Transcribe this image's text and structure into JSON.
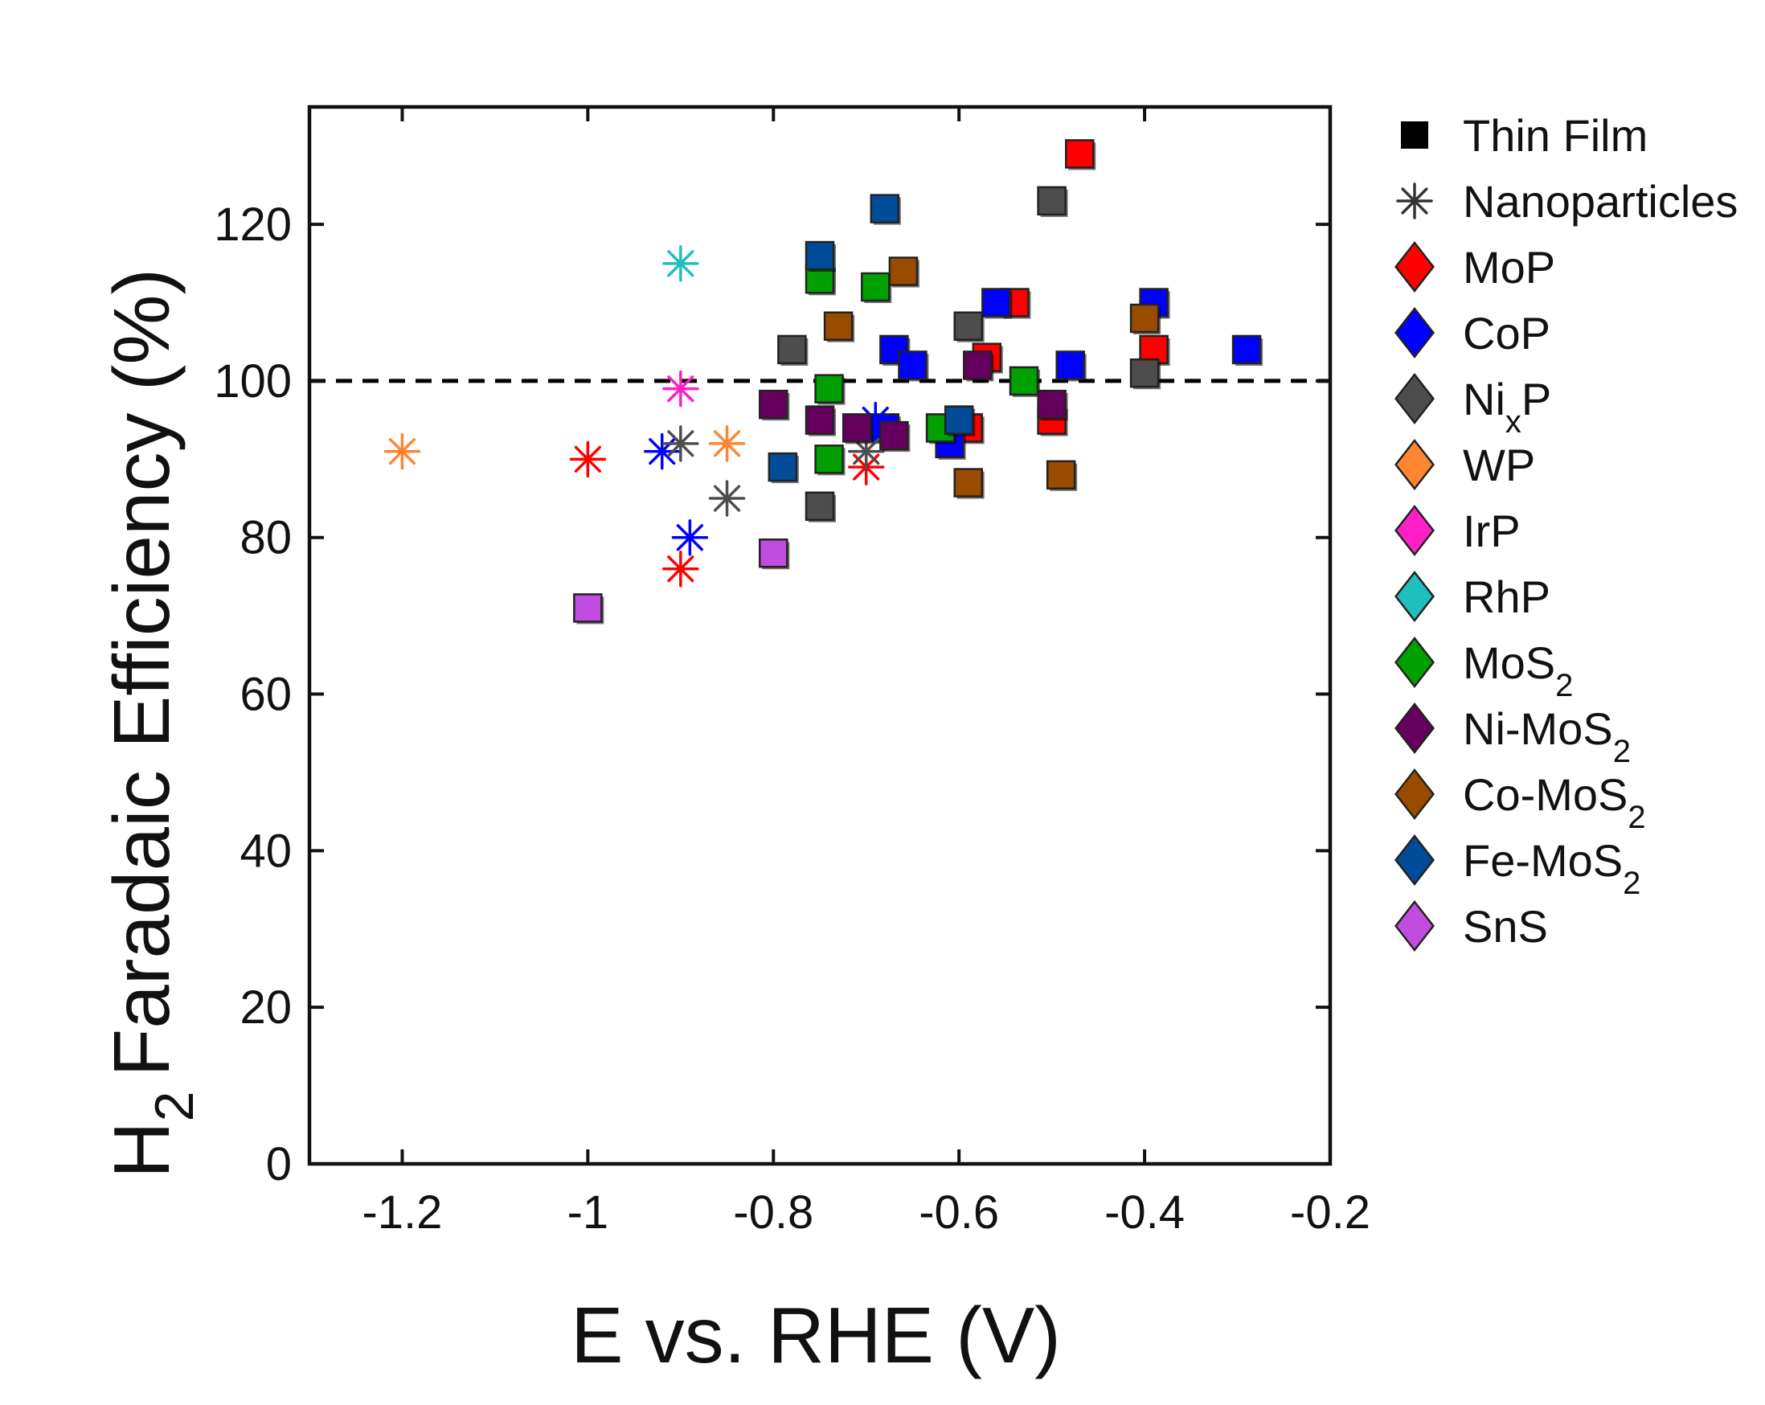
{
  "chart_data": {
    "type": "scatter",
    "xlabel": "E vs. RHE (V)",
    "ylabel": "H2 Faradaic Efficiency (%)",
    "ylabel_parts": {
      "main": "H",
      "sub": "2",
      "rest": "Faradaic Efficiency (%)"
    },
    "xlim": [
      -1.3,
      -0.2
    ],
    "ylim": [
      0,
      135
    ],
    "xticks": [
      -1.2,
      -1,
      -0.8,
      -0.6,
      -0.4,
      -0.2
    ],
    "xtick_labels": [
      "-1.2",
      "-1",
      "-0.8",
      "-0.6",
      "-0.4",
      "-0.2"
    ],
    "yticks": [
      0,
      20,
      40,
      60,
      80,
      100,
      120
    ],
    "ytick_labels": [
      "0",
      "20",
      "40",
      "60",
      "80",
      "100",
      "120"
    ],
    "reference_line": {
      "y": 100,
      "style": "dashed"
    },
    "legend_position": "right-outside",
    "legend": {
      "markers": [
        {
          "label": "Thin Film",
          "symbol": "square"
        },
        {
          "label": "Nanoparticles",
          "symbol": "asterisk"
        }
      ],
      "materials": [
        {
          "label": "MoP",
          "main": "MoP",
          "sub": "",
          "rest": ""
        },
        {
          "label": "CoP",
          "main": "CoP",
          "sub": "",
          "rest": ""
        },
        {
          "label": "NixP",
          "main": "Ni",
          "sub": "x",
          "rest": "P"
        },
        {
          "label": "WP",
          "main": "WP",
          "sub": "",
          "rest": ""
        },
        {
          "label": "IrP",
          "main": "IrP",
          "sub": "",
          "rest": ""
        },
        {
          "label": "RhP",
          "main": "RhP",
          "sub": "",
          "rest": ""
        },
        {
          "label": "MoS2",
          "main": "MoS",
          "sub": "2",
          "rest": ""
        },
        {
          "label": "Ni-MoS2",
          "main": "Ni-MoS",
          "sub": "2",
          "rest": ""
        },
        {
          "label": "Co-MoS2",
          "main": "Co-MoS",
          "sub": "2",
          "rest": ""
        },
        {
          "label": "Fe-MoS2",
          "main": "Fe-MoS",
          "sub": "2",
          "rest": ""
        },
        {
          "label": "SnS",
          "main": "SnS",
          "sub": "",
          "rest": ""
        }
      ]
    },
    "colors": {
      "MoP": "#ff0000",
      "CoP": "#0000ff",
      "NixP": "#4d4d4d",
      "WP": "#ff8533",
      "IrP": "#ff1fc7",
      "RhP": "#1fbfbf",
      "MoS2": "#00a000",
      "Ni-MoS2": "#66005f",
      "Co-MoS2": "#994c00",
      "Fe-MoS2": "#004c99",
      "SnS": "#c04de0"
    },
    "series": [
      {
        "name": "MoP",
        "marker": "square",
        "points": [
          [
            -0.47,
            129
          ],
          [
            -0.54,
            110
          ],
          [
            -0.57,
            103
          ],
          [
            -0.39,
            104
          ],
          [
            -0.5,
            95
          ],
          [
            -0.59,
            94
          ]
        ]
      },
      {
        "name": "MoP",
        "marker": "asterisk",
        "points": [
          [
            -1.0,
            90
          ],
          [
            -0.9,
            76
          ],
          [
            -0.7,
            89
          ]
        ]
      },
      {
        "name": "CoP",
        "marker": "square",
        "points": [
          [
            -0.56,
            110
          ],
          [
            -0.39,
            110
          ],
          [
            -0.67,
            104
          ],
          [
            -0.65,
            102
          ],
          [
            -0.48,
            102
          ],
          [
            -0.29,
            104
          ],
          [
            -0.61,
            92
          ],
          [
            -0.68,
            94
          ]
        ]
      },
      {
        "name": "CoP",
        "marker": "asterisk",
        "points": [
          [
            -0.92,
            91
          ],
          [
            -0.89,
            80
          ],
          [
            -0.69,
            95
          ]
        ]
      },
      {
        "name": "NixP",
        "marker": "square",
        "points": [
          [
            -0.5,
            123
          ],
          [
            -0.59,
            107
          ],
          [
            -0.78,
            104
          ],
          [
            -0.4,
            101
          ],
          [
            -0.75,
            84
          ]
        ]
      },
      {
        "name": "NixP",
        "marker": "asterisk",
        "points": [
          [
            -0.9,
            92
          ],
          [
            -0.85,
            85
          ],
          [
            -0.7,
            91
          ]
        ]
      },
      {
        "name": "WP",
        "marker": "asterisk",
        "points": [
          [
            -1.2,
            91
          ],
          [
            -0.85,
            92
          ]
        ]
      },
      {
        "name": "IrP",
        "marker": "asterisk",
        "points": [
          [
            -0.9,
            99
          ]
        ]
      },
      {
        "name": "RhP",
        "marker": "asterisk",
        "points": [
          [
            -0.9,
            115
          ]
        ]
      },
      {
        "name": "MoS2",
        "marker": "square",
        "points": [
          [
            -0.75,
            113
          ],
          [
            -0.69,
            112
          ],
          [
            -0.74,
            99
          ],
          [
            -0.53,
            100
          ],
          [
            -0.62,
            94
          ],
          [
            -0.74,
            90
          ]
        ]
      },
      {
        "name": "Ni-MoS2",
        "marker": "square",
        "points": [
          [
            -0.8,
            97
          ],
          [
            -0.75,
            95
          ],
          [
            -0.71,
            94
          ],
          [
            -0.67,
            93
          ],
          [
            -0.58,
            102
          ],
          [
            -0.5,
            97
          ]
        ]
      },
      {
        "name": "Co-MoS2",
        "marker": "square",
        "points": [
          [
            -0.66,
            114
          ],
          [
            -0.73,
            107
          ],
          [
            -0.4,
            108
          ],
          [
            -0.59,
            87
          ],
          [
            -0.49,
            88
          ]
        ]
      },
      {
        "name": "Fe-MoS2",
        "marker": "square",
        "points": [
          [
            -0.68,
            122
          ],
          [
            -0.75,
            116
          ],
          [
            -0.6,
            95
          ],
          [
            -0.79,
            89
          ]
        ]
      },
      {
        "name": "SnS",
        "marker": "square",
        "points": [
          [
            -1.0,
            71
          ],
          [
            -0.8,
            78
          ]
        ]
      }
    ]
  }
}
